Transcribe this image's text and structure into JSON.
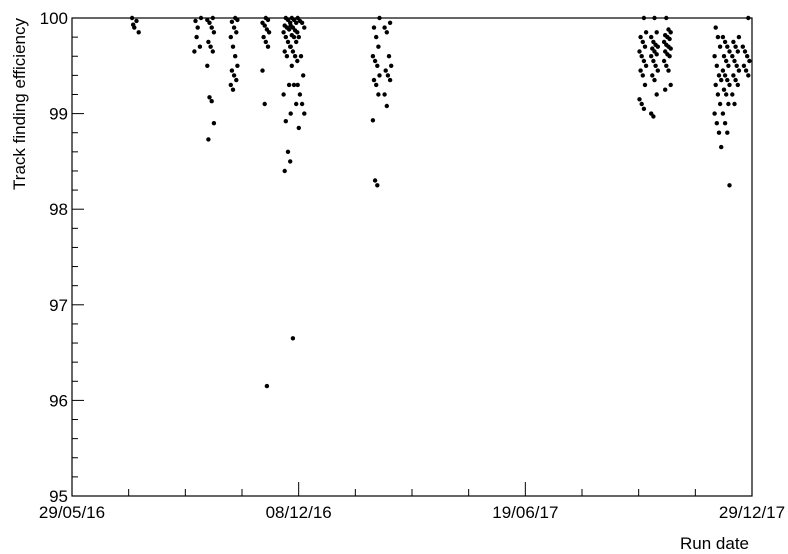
{
  "chart_data": {
    "type": "scatter",
    "xlabel": "Run date",
    "ylabel": "Track finding efficiency",
    "x_axis_type": "date",
    "xlim": [
      "2016-05-29",
      "2017-12-29"
    ],
    "ylim": [
      95,
      100
    ],
    "x_ticks": [
      {
        "date": "2016-05-29",
        "label": "29/05/16"
      },
      {
        "date": "2016-12-08",
        "label": "08/12/16"
      },
      {
        "date": "2017-06-19",
        "label": "19/06/17"
      },
      {
        "date": "2017-12-29",
        "label": "29/12/17"
      }
    ],
    "y_ticks": [
      95,
      96,
      97,
      98,
      99,
      100
    ],
    "grid": false,
    "marker_color": "#000000",
    "clusters": [
      {
        "date": "2016-07-22",
        "values": [
          100.0,
          99.9,
          99.97,
          99.85,
          99.93
        ]
      },
      {
        "date": "2016-09-13",
        "values": [
          100.0,
          99.97,
          99.9,
          99.7,
          99.65,
          99.8
        ]
      },
      {
        "date": "2016-09-24",
        "values": [
          100.0,
          99.98,
          99.95,
          99.9,
          99.85,
          99.75,
          99.7,
          99.65,
          99.5,
          99.17,
          99.13,
          98.9,
          98.73
        ]
      },
      {
        "date": "2016-10-14",
        "values": [
          100.0,
          99.98,
          99.96,
          99.9,
          99.85,
          99.8,
          99.7,
          99.6,
          99.5,
          99.45,
          99.4,
          99.35,
          99.3,
          99.25
        ]
      },
      {
        "date": "2016-11-10",
        "values": [
          100.0,
          99.98,
          99.95,
          99.92,
          99.88,
          99.85,
          99.8,
          99.75,
          99.7,
          99.45,
          99.1,
          96.15
        ]
      },
      {
        "date": "2016-11-28",
        "values": [
          100.0,
          99.98,
          99.95,
          99.92,
          99.9,
          99.88,
          99.85,
          99.8,
          99.75,
          99.7,
          99.65,
          99.6,
          99.3,
          99.2,
          98.92,
          98.6,
          98.5,
          98.4
        ]
      },
      {
        "date": "2016-12-04",
        "values": [
          100.0,
          99.98,
          99.95,
          99.92,
          99.9,
          99.87,
          99.85,
          99.82,
          99.8,
          99.75,
          99.7,
          99.65,
          99.6,
          99.55,
          99.5,
          99.3,
          99.1,
          99.0,
          96.65
        ]
      },
      {
        "date": "2016-12-10",
        "values": [
          100.0,
          99.97,
          99.95,
          99.9,
          99.8,
          99.6,
          99.4,
          99.3,
          99.2,
          99.1,
          99.0,
          98.85
        ]
      },
      {
        "date": "2017-02-12",
        "values": [
          100.0,
          99.9,
          99.8,
          99.7,
          99.6,
          99.55,
          99.5,
          99.4,
          99.35,
          99.3,
          99.2,
          98.93,
          98.3,
          98.25
        ]
      },
      {
        "date": "2017-02-22",
        "values": [
          99.95,
          99.9,
          99.85,
          99.6,
          99.5,
          99.45,
          99.4,
          99.35,
          99.2,
          99.08
        ]
      },
      {
        "date": "2017-09-27",
        "values": [
          100.0,
          99.85,
          99.8,
          99.75,
          99.7,
          99.65,
          99.6,
          99.55,
          99.5,
          99.45,
          99.4,
          99.3,
          99.15,
          99.1,
          99.05
        ]
      },
      {
        "date": "2017-10-07",
        "values": [
          100.0,
          99.85,
          99.8,
          99.75,
          99.72,
          99.7,
          99.68,
          99.65,
          99.62,
          99.6,
          99.55,
          99.5,
          99.45,
          99.4,
          99.35,
          99.2,
          99.0,
          98.97
        ]
      },
      {
        "date": "2017-10-18",
        "values": [
          100.0,
          99.88,
          99.85,
          99.82,
          99.8,
          99.78,
          99.75,
          99.72,
          99.7,
          99.68,
          99.65,
          99.62,
          99.6,
          99.55,
          99.5,
          99.45,
          99.3,
          99.25
        ]
      },
      {
        "date": "2017-11-30",
        "values": [
          99.9,
          99.8,
          99.7,
          99.6,
          99.5,
          99.4,
          99.35,
          99.3,
          99.2,
          99.1,
          99.0,
          98.9,
          98.8,
          98.65
        ]
      },
      {
        "date": "2017-12-07",
        "values": [
          99.8,
          99.75,
          99.7,
          99.65,
          99.6,
          99.55,
          99.5,
          99.45,
          99.4,
          99.35,
          99.3,
          99.25,
          99.2,
          99.1,
          99.0,
          98.9,
          98.8,
          98.25
        ]
      },
      {
        "date": "2017-12-15",
        "values": [
          99.8,
          99.75,
          99.7,
          99.65,
          99.6,
          99.55,
          99.5,
          99.45,
          99.4,
          99.35,
          99.3,
          99.2,
          99.1
        ]
      },
      {
        "date": "2017-12-24",
        "values": [
          100.0,
          99.7,
          99.65,
          99.6,
          99.55,
          99.5,
          99.45,
          99.4
        ]
      }
    ]
  }
}
